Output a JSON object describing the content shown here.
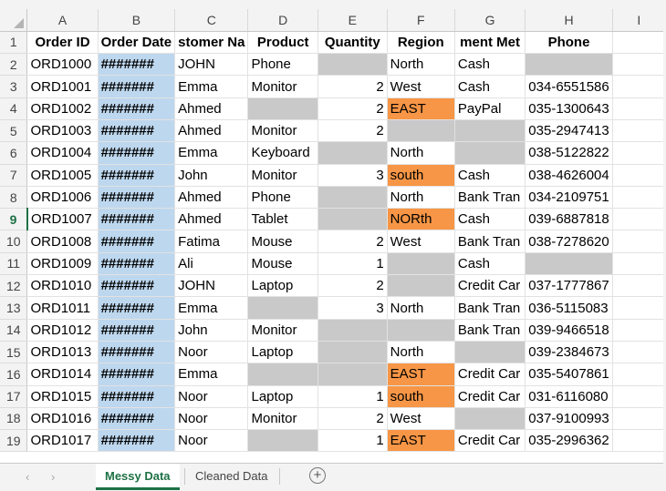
{
  "columns": [
    "A",
    "B",
    "C",
    "D",
    "E",
    "F",
    "G",
    "H",
    "I"
  ],
  "rows": [
    {
      "num": "1",
      "cells": [
        "Order ID",
        "Order Date",
        "stomer Na",
        "Product",
        "Quantity",
        "Region",
        "ment Met",
        "Phone",
        ""
      ]
    },
    {
      "num": "2",
      "cells": [
        "ORD1000",
        "#######",
        "JOHN",
        "Phone",
        "",
        "North",
        "Cash",
        "",
        ""
      ]
    },
    {
      "num": "3",
      "cells": [
        "ORD1001",
        "#######",
        "Emma",
        "Monitor",
        "2",
        "West",
        "Cash",
        "034-6551586",
        ""
      ]
    },
    {
      "num": "4",
      "cells": [
        "ORD1002",
        "#######",
        "Ahmed",
        "",
        "2",
        "EAST",
        "PayPal",
        "035-1300643",
        ""
      ]
    },
    {
      "num": "5",
      "cells": [
        "ORD1003",
        "#######",
        "Ahmed",
        "Monitor",
        "2",
        "",
        "",
        "035-2947413",
        ""
      ]
    },
    {
      "num": "6",
      "cells": [
        "ORD1004",
        "#######",
        "Emma",
        "Keyboard",
        "",
        "North",
        "",
        "038-5122822",
        ""
      ]
    },
    {
      "num": "7",
      "cells": [
        "ORD1005",
        "#######",
        "John",
        "Monitor",
        "3",
        "south",
        "Cash",
        "038-4626004",
        ""
      ]
    },
    {
      "num": "8",
      "cells": [
        "ORD1006",
        "#######",
        "Ahmed",
        "Phone",
        "",
        "North",
        "Bank Tran",
        "034-2109751",
        ""
      ]
    },
    {
      "num": "9",
      "cells": [
        "ORD1007",
        "#######",
        "Ahmed",
        "Tablet",
        "",
        "NORth",
        "Cash",
        "039-6887818",
        ""
      ]
    },
    {
      "num": "10",
      "cells": [
        "ORD1008",
        "#######",
        "Fatima",
        "Mouse",
        "2",
        "West",
        "Bank Tran",
        "038-7278620",
        ""
      ]
    },
    {
      "num": "11",
      "cells": [
        "ORD1009",
        "#######",
        "Ali",
        "Mouse",
        "1",
        "",
        "Cash",
        "",
        ""
      ]
    },
    {
      "num": "12",
      "cells": [
        "ORD1010",
        "#######",
        "JOHN",
        "Laptop",
        "2",
        "",
        "Credit Car",
        "037-1777867",
        ""
      ]
    },
    {
      "num": "13",
      "cells": [
        "ORD1011",
        "#######",
        "Emma",
        "",
        "3",
        "North",
        "Bank Tran",
        "036-5115083",
        ""
      ]
    },
    {
      "num": "14",
      "cells": [
        "ORD1012",
        "#######",
        "John",
        "Monitor",
        "",
        "",
        "Bank Tran",
        "039-9466518",
        ""
      ]
    },
    {
      "num": "15",
      "cells": [
        "ORD1013",
        "#######",
        "Noor",
        "Laptop",
        "",
        "North",
        "",
        "039-2384673",
        ""
      ]
    },
    {
      "num": "16",
      "cells": [
        "ORD1014",
        "#######",
        "Emma",
        "",
        "",
        "EAST",
        "Credit Car",
        "035-5407861",
        ""
      ]
    },
    {
      "num": "17",
      "cells": [
        "ORD1015",
        "#######",
        "Noor",
        "Laptop",
        "1",
        "south",
        "Credit Car",
        "031-6116080",
        ""
      ]
    },
    {
      "num": "18",
      "cells": [
        "ORD1016",
        "#######",
        "Noor",
        "Monitor",
        "2",
        "West",
        "",
        "037-9100993",
        ""
      ]
    },
    {
      "num": "19",
      "cells": [
        "ORD1017",
        "#######",
        "Noor",
        "",
        "1",
        "EAST",
        "Credit Car",
        "035-2996362",
        ""
      ]
    }
  ],
  "active_row": "9",
  "colors": {
    "selected_column": "#bdd7ee",
    "missing_cell": "#c9c9c9",
    "flagged_region": "#f79646",
    "active_accent": "#1e7145"
  },
  "sheet_tabs": {
    "active": "Messy Data",
    "other": "Cleaned Data",
    "add_icon": "+"
  },
  "nav_icons": {
    "prev": "‹",
    "next": "›"
  }
}
